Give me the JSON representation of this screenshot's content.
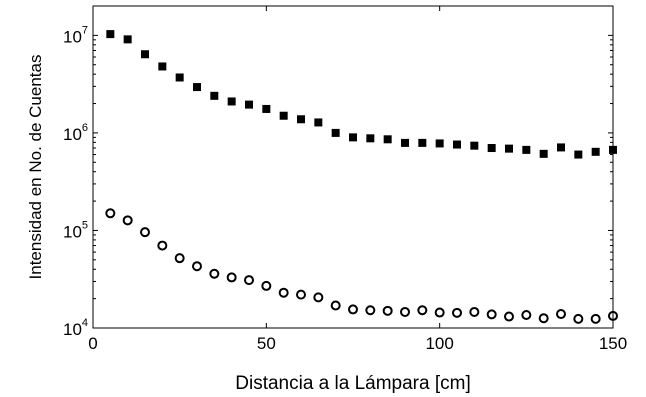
{
  "chart_data": {
    "type": "scatter",
    "title": "",
    "xlabel": "Distancia a la Lámpara [cm]",
    "ylabel": "Intensidad en No. de Cuentas",
    "xlim": [
      0,
      150
    ],
    "ylim": [
      10000,
      20000000
    ],
    "yscale": "log",
    "grid": false,
    "legend": "none",
    "x_ticks": [
      "0",
      "50",
      "100",
      "150"
    ],
    "y_ticks": [
      {
        "base": "10",
        "exp": "4"
      },
      {
        "base": "10",
        "exp": "5"
      },
      {
        "base": "10",
        "exp": "6"
      },
      {
        "base": "10",
        "exp": "7"
      }
    ],
    "series": [
      {
        "marker": "filled-square",
        "color": "#000000",
        "x": [
          5,
          10,
          15,
          20,
          25,
          30,
          35,
          40,
          45,
          50,
          55,
          60,
          65,
          70,
          75,
          80,
          85,
          90,
          95,
          100,
          105,
          110,
          115,
          120,
          125,
          130,
          135,
          140,
          145,
          150
        ],
        "y": [
          10300000,
          9100000,
          6400000,
          4800000,
          3700000,
          2950000,
          2400000,
          2100000,
          1950000,
          1760000,
          1500000,
          1380000,
          1280000,
          1000000,
          900000,
          880000,
          860000,
          790000,
          790000,
          780000,
          760000,
          740000,
          700000,
          690000,
          670000,
          610000,
          710000,
          600000,
          640000,
          670000
        ]
      },
      {
        "marker": "open-circle",
        "color": "#000000",
        "x": [
          5,
          10,
          15,
          20,
          25,
          30,
          35,
          40,
          45,
          50,
          55,
          60,
          65,
          70,
          75,
          80,
          85,
          90,
          95,
          100,
          105,
          110,
          115,
          120,
          125,
          130,
          135,
          140,
          145,
          150
        ],
        "y": [
          150000,
          127000,
          96000,
          70000,
          52000,
          43000,
          36000,
          33000,
          31000,
          27000,
          23000,
          22000,
          20600,
          17000,
          15500,
          15200,
          15000,
          14600,
          15200,
          14400,
          14300,
          14600,
          13800,
          13100,
          13600,
          12600,
          13900,
          12400,
          12400,
          13300
        ]
      }
    ]
  }
}
